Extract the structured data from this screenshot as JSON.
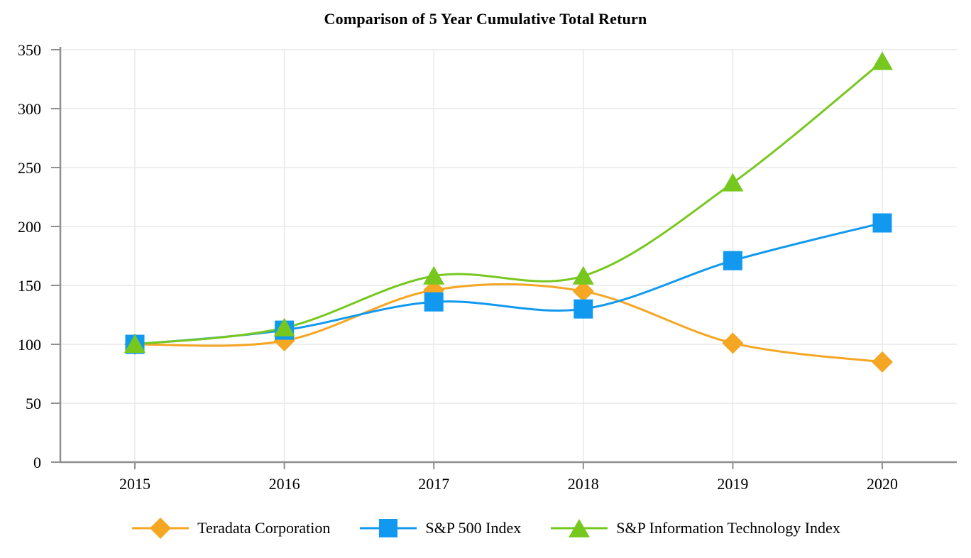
{
  "chart_data": {
    "type": "line",
    "title": "Comparison of 5 Year Cumulative Total Return",
    "categories": [
      "2015",
      "2016",
      "2017",
      "2018",
      "2019",
      "2020"
    ],
    "series": [
      {
        "name": "Teradata Corporation",
        "marker": "diamond",
        "color": "#F5A623",
        "values": [
          100,
          103,
          146,
          145,
          101,
          85
        ]
      },
      {
        "name": "S&P 500 Index",
        "marker": "square",
        "color": "#1199F0",
        "values": [
          100,
          112,
          136,
          130,
          171,
          203
        ]
      },
      {
        "name": "S&P Information Technology Index",
        "marker": "triangle",
        "color": "#77C81E",
        "values": [
          100,
          114,
          158,
          158,
          237,
          340
        ]
      }
    ],
    "xlabel": "",
    "ylabel": "",
    "ylim": [
      0,
      350
    ],
    "yticks": [
      0,
      50,
      100,
      150,
      200,
      250,
      300,
      350
    ],
    "grid": true,
    "legend_position": "bottom",
    "line_smooth": true,
    "axis_color": "#8f8f8f",
    "grid_color": "#e9e9e9",
    "background": "#ffffff",
    "text_color": "#000000"
  }
}
